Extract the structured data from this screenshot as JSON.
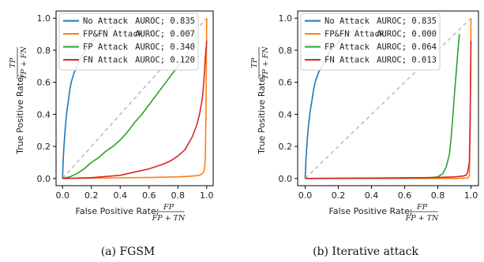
{
  "chart_data": [
    {
      "type": "line",
      "caption": "(a) FGSM",
      "xlabel_prefix": "False Positive Rate; ",
      "xlabel_frac_num": "FP",
      "xlabel_frac_den": "FP + TN",
      "ylabel_prefix": "True Positive Rate; ",
      "ylabel_frac_num": "TP",
      "ylabel_frac_den": "TP + FN",
      "xlim": [
        0,
        1
      ],
      "ylim": [
        0,
        1
      ],
      "xticks": [
        "0.0",
        "0.2",
        "0.4",
        "0.6",
        "0.8",
        "1.0"
      ],
      "yticks": [
        "0.0",
        "0.2",
        "0.4",
        "0.6",
        "0.8",
        "1.0"
      ],
      "grid": false,
      "legend_position": "upper-left",
      "diagonal": true,
      "series": [
        {
          "name": "No Attack",
          "score_label": "AUROC; 0.835",
          "color": "#1f77b4",
          "x": [
            0,
            0.005,
            0.01,
            0.015,
            0.02,
            0.03,
            0.04,
            0.05,
            0.06,
            0.08,
            0.1,
            0.12,
            0.15,
            0.2,
            0.25,
            0.3,
            0.35
          ],
          "y": [
            0,
            0.12,
            0.2,
            0.27,
            0.33,
            0.42,
            0.48,
            0.55,
            0.6,
            0.66,
            0.7,
            0.74,
            0.79,
            0.85,
            0.9,
            0.93,
            0.95
          ]
        },
        {
          "name": "FP&FN Attack",
          "score_label": "AUROC; 0.007",
          "color": "#ff7f0e",
          "x": [
            0,
            0.2,
            0.4,
            0.6,
            0.8,
            0.9,
            0.95,
            0.97,
            0.98,
            0.985,
            0.99,
            0.995,
            1.0
          ],
          "y": [
            0,
            0.002,
            0.004,
            0.006,
            0.01,
            0.015,
            0.02,
            0.03,
            0.04,
            0.06,
            0.12,
            0.4,
            1.0
          ]
        },
        {
          "name": "FP Attack",
          "score_label": "AUROC; 0.340",
          "color": "#2ca02c",
          "x": [
            0,
            0.05,
            0.1,
            0.15,
            0.2,
            0.25,
            0.3,
            0.35,
            0.4,
            0.45,
            0.5,
            0.55,
            0.6,
            0.65,
            0.7,
            0.75,
            0.8,
            0.85,
            0.9,
            0.93
          ],
          "y": [
            0,
            0.01,
            0.03,
            0.06,
            0.1,
            0.13,
            0.17,
            0.2,
            0.24,
            0.29,
            0.35,
            0.4,
            0.46,
            0.52,
            0.58,
            0.64,
            0.7,
            0.76,
            0.84,
            0.9
          ]
        },
        {
          "name": "FN Attack",
          "score_label": "AUROC; 0.120",
          "color": "#d62728",
          "x": [
            0,
            0.2,
            0.4,
            0.5,
            0.6,
            0.7,
            0.75,
            0.8,
            0.85,
            0.9,
            0.93,
            0.95,
            0.97,
            0.98,
            0.99,
            1.0
          ],
          "y": [
            0,
            0.005,
            0.02,
            0.04,
            0.06,
            0.09,
            0.11,
            0.14,
            0.18,
            0.26,
            0.33,
            0.4,
            0.5,
            0.6,
            0.75,
            0.86
          ]
        }
      ]
    },
    {
      "type": "line",
      "caption": "(b) Iterative attack",
      "xlabel_prefix": "False Positive Rate; ",
      "xlabel_frac_num": "FP",
      "xlabel_frac_den": "FP + TN",
      "ylabel_prefix": "True Positive Rate; ",
      "ylabel_frac_num": "TP",
      "ylabel_frac_den": "TP + FN",
      "xlim": [
        0,
        1
      ],
      "ylim": [
        0,
        1
      ],
      "xticks": [
        "0.0",
        "0.2",
        "0.4",
        "0.6",
        "0.8",
        "1.0"
      ],
      "yticks": [
        "0.0",
        "0.2",
        "0.4",
        "0.6",
        "0.8",
        "1.0"
      ],
      "grid": false,
      "legend_position": "upper-left",
      "diagonal": true,
      "series": [
        {
          "name": "No Attack",
          "score_label": "AUROC; 0.835",
          "color": "#1f77b4",
          "x": [
            0,
            0.005,
            0.01,
            0.015,
            0.02,
            0.03,
            0.04,
            0.05,
            0.06,
            0.08,
            0.1,
            0.12,
            0.15,
            0.2,
            0.25,
            0.3,
            0.35
          ],
          "y": [
            0,
            0.12,
            0.2,
            0.27,
            0.33,
            0.42,
            0.48,
            0.55,
            0.6,
            0.66,
            0.7,
            0.74,
            0.79,
            0.85,
            0.9,
            0.93,
            0.95
          ]
        },
        {
          "name": "FP&FN Attack",
          "score_label": "AUROC; 0.000",
          "color": "#ff7f0e",
          "x": [
            0,
            0.5,
            0.9,
            0.97,
            0.985,
            0.99,
            0.995,
            1.0
          ],
          "y": [
            0,
            0,
            0,
            0.002,
            0.005,
            0.02,
            0.3,
            1.0
          ]
        },
        {
          "name": "FP Attack",
          "score_label": "AUROC; 0.064",
          "color": "#2ca02c",
          "x": [
            0,
            0.5,
            0.75,
            0.8,
            0.83,
            0.85,
            0.87,
            0.88,
            0.89,
            0.9,
            0.91,
            0.92,
            0.93
          ],
          "y": [
            0,
            0.002,
            0.005,
            0.01,
            0.03,
            0.07,
            0.15,
            0.25,
            0.38,
            0.52,
            0.65,
            0.78,
            0.9
          ]
        },
        {
          "name": "FN Attack",
          "score_label": "AUROC; 0.013",
          "color": "#d62728",
          "x": [
            0,
            0.5,
            0.8,
            0.9,
            0.95,
            0.97,
            0.98,
            0.99,
            0.995,
            1.0
          ],
          "y": [
            0,
            0.003,
            0.006,
            0.01,
            0.015,
            0.02,
            0.04,
            0.1,
            0.4,
            0.86
          ]
        }
      ]
    }
  ]
}
